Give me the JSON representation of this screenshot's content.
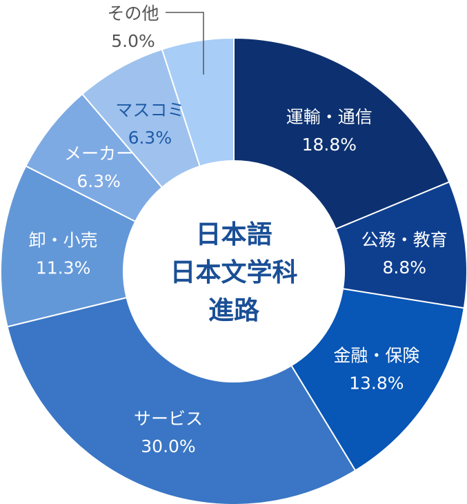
{
  "chart_data": {
    "type": "donut",
    "center_title": [
      "日本語",
      "日本文学科",
      "進路"
    ],
    "slices": [
      {
        "label": "運輸・通信",
        "value": 18.8,
        "value_text": "18.8%",
        "color": "#0d3170",
        "text_color": "#ffffff"
      },
      {
        "label": "公務・教育",
        "value": 8.8,
        "value_text": "8.8%",
        "color": "#0e3f8f",
        "text_color": "#ffffff"
      },
      {
        "label": "金融・保険",
        "value": 13.8,
        "value_text": "13.8%",
        "color": "#0856b6",
        "text_color": "#ffffff"
      },
      {
        "label": "サービス",
        "value": 30.0,
        "value_text": "30.0%",
        "color": "#3a76c5",
        "text_color": "#ffffff"
      },
      {
        "label": "卸・小売",
        "value": 11.3,
        "value_text": "11.3%",
        "color": "#6398d8",
        "text_color": "#ffffff"
      },
      {
        "label": "メーカー",
        "value": 6.3,
        "value_text": "6.3%",
        "color": "#7eaae3",
        "text_color": "#ffffff"
      },
      {
        "label": "マスコミ",
        "value": 6.3,
        "value_text": "6.3%",
        "color": "#9ec2ed",
        "text_color": "#1f5aa8"
      },
      {
        "label": "その他",
        "value": 5.0,
        "value_text": "5.0%",
        "color": "#a8cdf6",
        "text_color": "#555555"
      }
    ],
    "center_text_color": "#1a4f96"
  }
}
